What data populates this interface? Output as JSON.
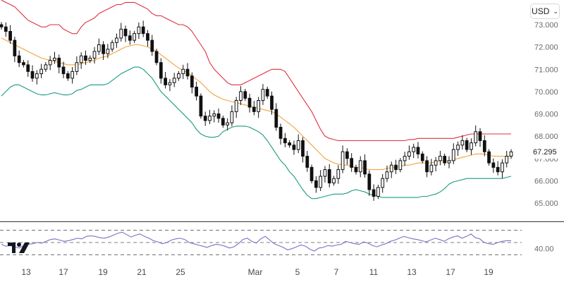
{
  "currency_selector": {
    "value": "USD"
  },
  "last_price_label": "67.295",
  "colors": {
    "upper_band": "#e0313f",
    "middle_band": "#f2a33a",
    "lower_band": "#1a9a82",
    "candle": "#111111",
    "rsi_line": "#7b6fc4",
    "grid": "#333333"
  },
  "chart_data": [
    {
      "type": "candlestick",
      "indicator_overlay": "bollinger_bands",
      "x_tick_labels": [
        "13",
        "17",
        "19",
        "21",
        "25",
        "Mar",
        "5",
        "7",
        "11",
        "13",
        "17",
        "19"
      ],
      "y_tick_labels": [
        "73.000",
        "72.000",
        "71.000",
        "70.000",
        "69.000",
        "68.000",
        "67.000",
        "66.000",
        "65.000"
      ],
      "ylim": [
        64.5,
        73.2
      ],
      "last_value": 67.295,
      "close_series": [
        72.9,
        72.7,
        72.3,
        71.6,
        71.3,
        71.2,
        70.9,
        70.6,
        70.8,
        71.0,
        71.2,
        71.4,
        71.5,
        71.1,
        70.8,
        70.6,
        70.9,
        71.3,
        71.6,
        71.4,
        71.5,
        71.8,
        72.1,
        71.7,
        71.9,
        72.2,
        72.4,
        72.8,
        72.5,
        72.3,
        72.6,
        72.9,
        72.6,
        72.3,
        71.8,
        71.3,
        70.6,
        70.3,
        70.4,
        70.6,
        70.8,
        71.0,
        70.7,
        70.2,
        69.8,
        68.9,
        68.7,
        68.9,
        69.0,
        68.8,
        68.5,
        68.6,
        69.1,
        69.6,
        70.0,
        69.7,
        69.3,
        69.1,
        69.6,
        70.1,
        69.8,
        69.2,
        68.4,
        67.9,
        67.7,
        67.6,
        67.4,
        67.8,
        67.1,
        66.6,
        66.0,
        65.7,
        66.2,
        66.5,
        65.9,
        66.1,
        66.5,
        67.3,
        67.0,
        66.6,
        66.4,
        66.9,
        66.3,
        65.6,
        65.3,
        65.7,
        66.1,
        66.4,
        66.7,
        66.5,
        66.9,
        67.1,
        67.3,
        67.5,
        67.2,
        66.9,
        66.4,
        66.7,
        66.9,
        67.1,
        66.8,
        66.9,
        67.4,
        67.6,
        67.8,
        67.4,
        67.7,
        68.2,
        67.8,
        67.3,
        66.8,
        66.6,
        66.4,
        66.8,
        67.1,
        67.295
      ],
      "bollinger": {
        "upper": [
          74.1,
          74.0,
          73.9,
          73.8,
          73.6,
          73.4,
          73.2,
          73.1,
          73.0,
          72.9,
          72.9,
          73.0,
          73.0,
          73.0,
          72.8,
          72.7,
          72.6,
          72.6,
          72.9,
          73.1,
          73.2,
          73.3,
          73.5,
          73.6,
          73.7,
          73.8,
          73.9,
          73.9,
          74.0,
          74.0,
          74.0,
          73.9,
          73.8,
          73.7,
          73.5,
          73.4,
          73.4,
          73.3,
          73.2,
          73.1,
          73.0,
          73.0,
          72.9,
          72.7,
          72.4,
          72.1,
          71.8,
          71.3,
          71.0,
          70.8,
          70.6,
          70.4,
          70.3,
          70.3,
          70.3,
          70.4,
          70.5,
          70.6,
          70.7,
          70.8,
          70.9,
          71.0,
          71.0,
          71.0,
          70.9,
          70.6,
          70.3,
          70.0,
          69.7,
          69.4,
          69.1,
          68.7,
          68.3,
          68.0,
          67.9,
          67.85,
          67.8,
          67.8,
          67.8,
          67.8,
          67.8,
          67.8,
          67.8,
          67.8,
          67.8,
          67.8,
          67.8,
          67.8,
          67.8,
          67.8,
          67.8,
          67.8,
          67.85,
          67.85,
          67.9,
          67.9,
          67.9,
          67.9,
          67.9,
          67.9,
          67.9,
          67.9,
          67.9,
          67.95,
          68.0,
          68.05,
          68.1,
          68.1,
          68.1,
          68.1,
          68.1,
          68.1,
          68.1,
          68.1,
          68.1,
          68.1
        ],
        "middle": [
          72.4,
          72.3,
          72.2,
          72.1,
          72.0,
          71.9,
          71.8,
          71.7,
          71.6,
          71.5,
          71.45,
          71.4,
          71.35,
          71.3,
          71.25,
          71.2,
          71.2,
          71.2,
          71.25,
          71.3,
          71.35,
          71.4,
          71.5,
          71.55,
          71.6,
          71.7,
          71.8,
          71.9,
          72.0,
          72.05,
          72.1,
          72.1,
          72.05,
          72.0,
          71.9,
          71.8,
          71.65,
          71.5,
          71.35,
          71.2,
          71.05,
          70.95,
          70.85,
          70.7,
          70.55,
          70.4,
          70.2,
          70.0,
          69.85,
          69.75,
          69.65,
          69.6,
          69.55,
          69.5,
          69.45,
          69.4,
          69.35,
          69.3,
          69.25,
          69.2,
          69.15,
          69.1,
          69.0,
          68.85,
          68.7,
          68.55,
          68.4,
          68.2,
          68.0,
          67.8,
          67.6,
          67.4,
          67.2,
          67.0,
          66.9,
          66.8,
          66.75,
          66.7,
          66.7,
          66.65,
          66.6,
          66.6,
          66.55,
          66.5,
          66.5,
          66.5,
          66.5,
          66.55,
          66.6,
          66.6,
          66.65,
          66.7,
          66.7,
          66.75,
          66.8,
          66.8,
          66.8,
          66.8,
          66.85,
          66.9,
          66.9,
          66.9,
          66.95,
          67.0,
          67.05,
          67.1,
          67.15,
          67.2,
          67.2,
          67.2,
          67.15,
          67.1,
          67.1,
          67.1,
          67.1,
          67.1
        ],
        "lower": [
          69.8,
          70.0,
          70.2,
          70.3,
          70.3,
          70.2,
          70.1,
          70.0,
          69.9,
          69.85,
          69.85,
          69.9,
          69.95,
          69.9,
          69.85,
          69.85,
          69.9,
          70.05,
          70.1,
          70.2,
          70.3,
          70.3,
          70.3,
          70.3,
          70.35,
          70.5,
          70.65,
          70.8,
          70.9,
          71.0,
          71.1,
          71.1,
          71.0,
          70.8,
          70.6,
          70.3,
          70.0,
          69.8,
          69.6,
          69.4,
          69.2,
          69.0,
          68.8,
          68.6,
          68.3,
          68.1,
          68.0,
          67.95,
          67.95,
          68.0,
          68.2,
          68.3,
          68.4,
          68.45,
          68.45,
          68.45,
          68.4,
          68.3,
          68.2,
          68.05,
          67.8,
          67.5,
          67.2,
          66.9,
          66.7,
          66.4,
          66.2,
          65.9,
          65.6,
          65.35,
          65.2,
          65.2,
          65.25,
          65.3,
          65.35,
          65.4,
          65.4,
          65.4,
          65.45,
          65.55,
          65.6,
          65.55,
          65.5,
          65.4,
          65.35,
          65.3,
          65.25,
          65.25,
          65.25,
          65.25,
          65.25,
          65.25,
          65.25,
          65.25,
          65.25,
          65.3,
          65.3,
          65.35,
          65.4,
          65.5,
          65.65,
          65.85,
          65.95,
          66.0,
          66.05,
          66.1,
          66.1,
          66.1,
          66.1,
          66.1,
          66.1,
          66.1,
          66.1,
          66.1,
          66.15,
          66.2
        ]
      }
    },
    {
      "type": "line",
      "indicator": "RSI",
      "y_tick_labels": [
        "40.00"
      ],
      "ylim": [
        20,
        80
      ],
      "guide_levels": [
        70,
        50,
        30
      ],
      "values": [
        47,
        44,
        45,
        43,
        41,
        45,
        47,
        48,
        50,
        49,
        52,
        55,
        56,
        54,
        52,
        53,
        55,
        57,
        56,
        60,
        61,
        60,
        58,
        57,
        59,
        62,
        65,
        67,
        63,
        59,
        62,
        64,
        60,
        57,
        53,
        51,
        48,
        50,
        54,
        56,
        57,
        55,
        50,
        48,
        46,
        44,
        42,
        45,
        47,
        46,
        44,
        41,
        43,
        48,
        55,
        57,
        52,
        49,
        56,
        60,
        54,
        48,
        45,
        42,
        38,
        40,
        43,
        46,
        44,
        39,
        36,
        41,
        42,
        45,
        44,
        46,
        47,
        52,
        50,
        48,
        47,
        51,
        49,
        45,
        43,
        46,
        48,
        52,
        54,
        57,
        60,
        58,
        56,
        55,
        53,
        51,
        54,
        57,
        55,
        52,
        56,
        59,
        61,
        57,
        60,
        64,
        58,
        56,
        50,
        48,
        47,
        50,
        52,
        53,
        53
      ]
    }
  ]
}
